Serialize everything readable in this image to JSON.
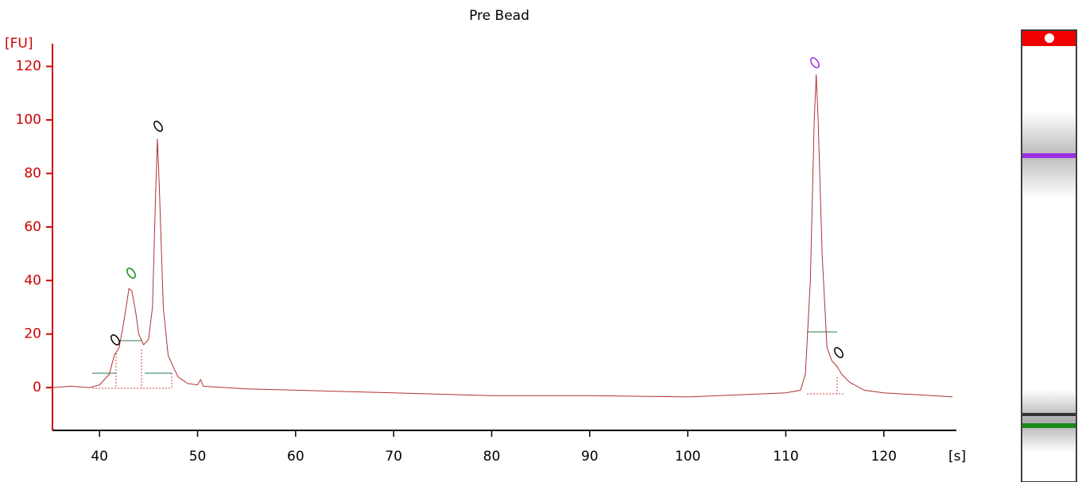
{
  "chart_data": {
    "type": "line",
    "title": "Pre Bead",
    "y_label": "[FU]",
    "x_label": "[s]",
    "xlim": [
      35.2,
      127.4
    ],
    "ylim": [
      -16,
      128.5
    ],
    "xticks": [
      40,
      50,
      60,
      70,
      80,
      90,
      100,
      110,
      120
    ],
    "yticks": [
      0,
      20,
      40,
      60,
      80,
      100,
      120
    ],
    "series": [
      {
        "color": "#b03030",
        "x": [
          35.2,
          37,
          39,
          40,
          41,
          41.5,
          42,
          42.5,
          43,
          43.3,
          43.7,
          44,
          44.5,
          45,
          45.4,
          45.7,
          45.9,
          46.1,
          46.5,
          47,
          48,
          49,
          50,
          50.3,
          50.6,
          55,
          60,
          70,
          80,
          90,
          100,
          110,
          111.5,
          112,
          112.5,
          112.9,
          113.1,
          113.3,
          113.7,
          114.2,
          114.7,
          115.2,
          115.7,
          116.5,
          118,
          120,
          125,
          127
        ],
        "values": [
          0,
          0.5,
          0,
          1,
          5,
          12,
          15,
          25,
          37,
          36,
          28,
          20,
          16,
          18,
          30,
          70,
          93,
          75,
          30,
          12,
          4,
          1.5,
          1,
          3,
          0.5,
          -0.5,
          -1,
          -2,
          -3,
          -3,
          -3.5,
          -2,
          -1,
          5,
          40,
          100,
          117,
          100,
          50,
          15,
          10,
          8,
          5,
          2,
          -1,
          -2,
          -3,
          -3.5
        ]
      }
    ]
  }
}
